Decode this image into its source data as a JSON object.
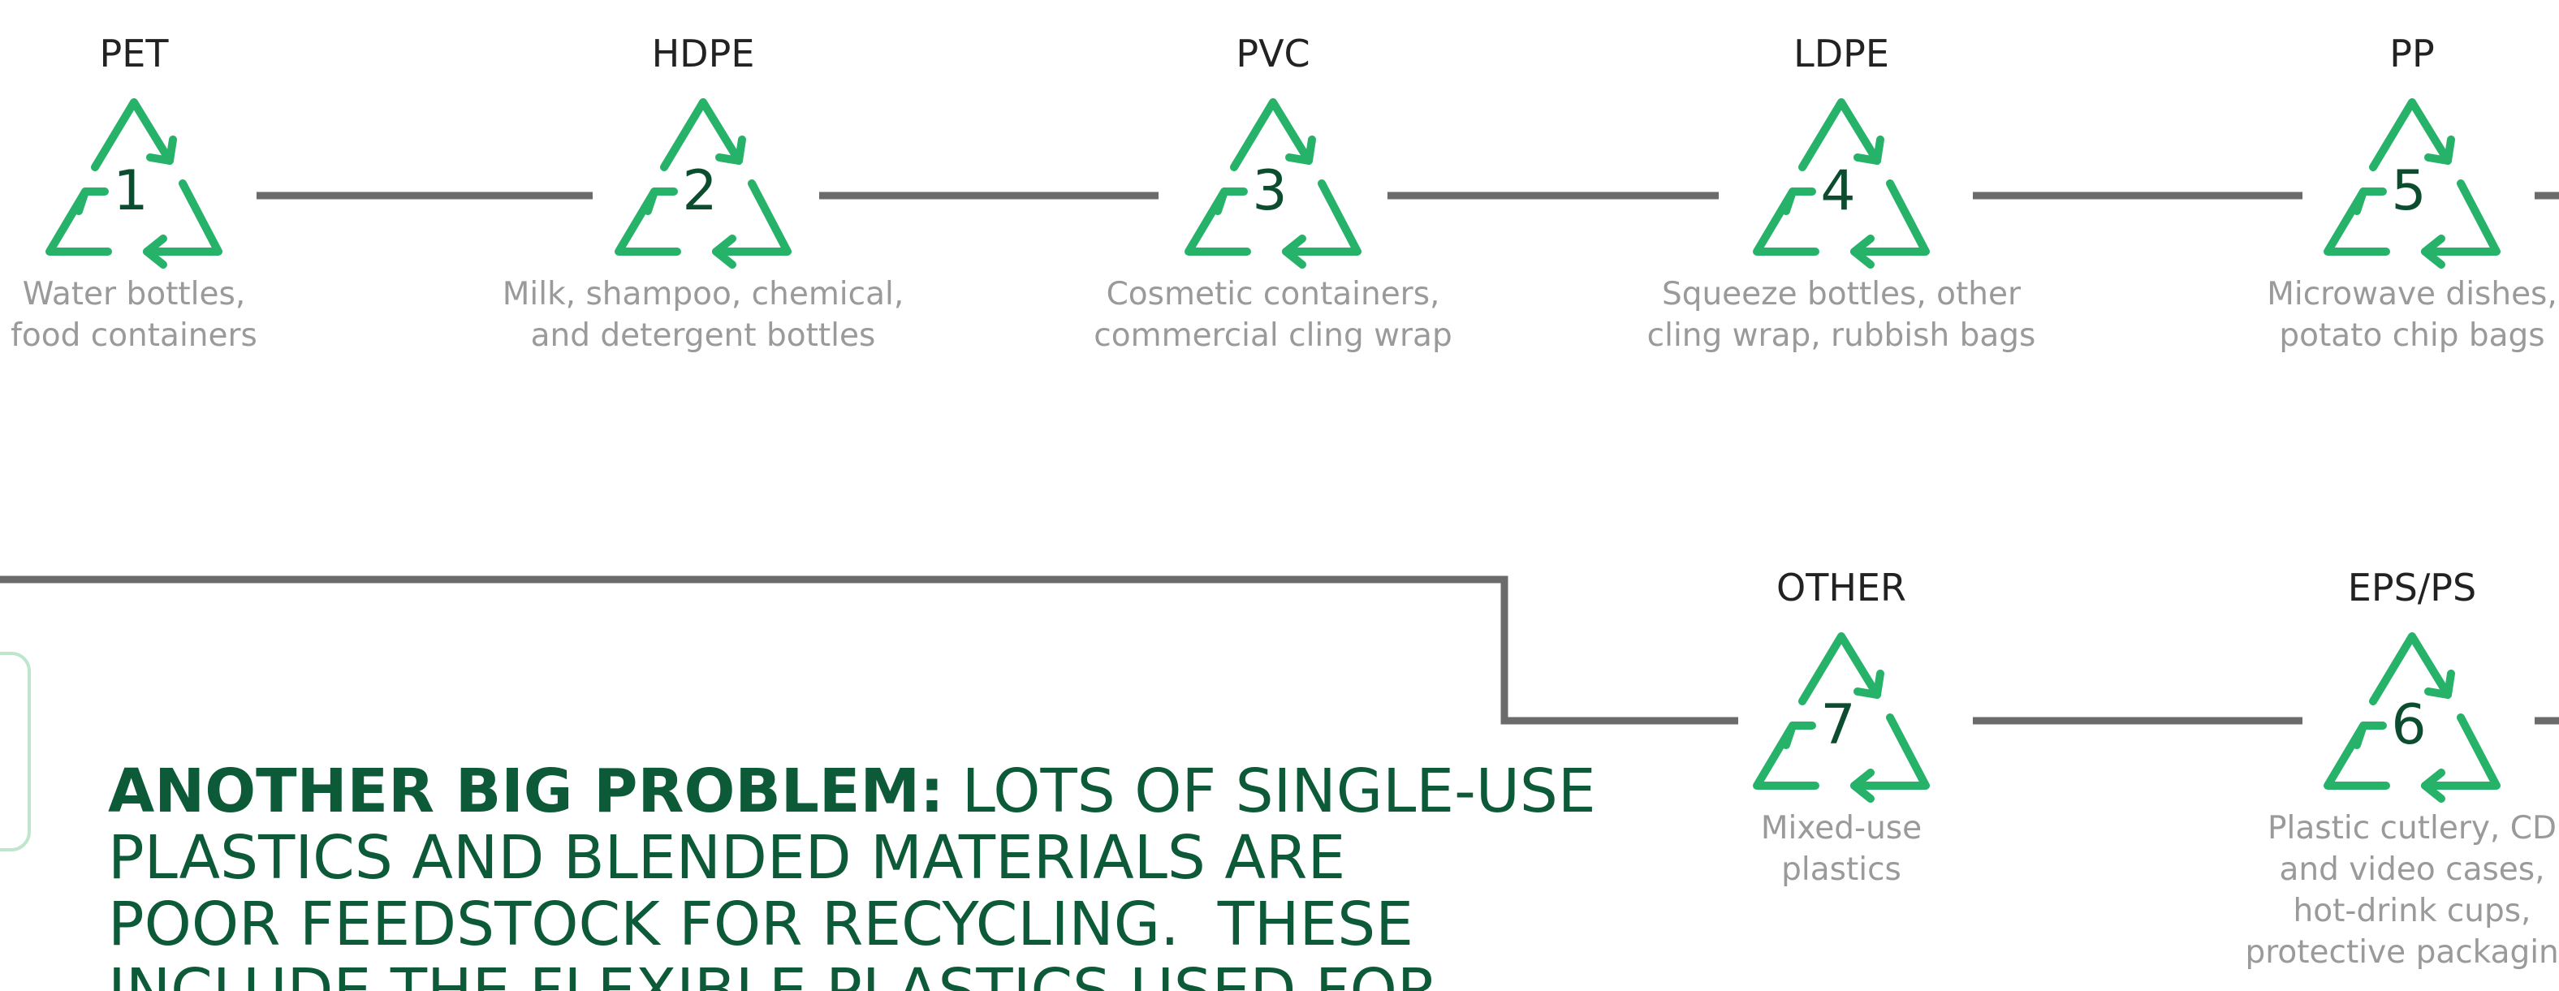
{
  "nodes": [
    {
      "label": "PET",
      "number": 1,
      "description": [
        "Water bottles,",
        "food containers"
      ]
    },
    {
      "label": "HDPE",
      "number": 2,
      "description": [
        "Milk, shampoo, chemical,",
        "and detergent bottles"
      ]
    },
    {
      "label": "PVC",
      "number": 3,
      "description": [
        "Cosmetic containers,",
        "commercial cling wrap"
      ]
    },
    {
      "label": "LDPE",
      "number": 4,
      "description": [
        "Squeeze bottles, other",
        "cling wrap, rubbish bags"
      ]
    },
    {
      "label": "PP",
      "number": 5,
      "description": [
        "Microwave dishes,",
        "potato chip bags"
      ]
    },
    {
      "label": "OTHER",
      "number": 7,
      "description": [
        "Mixed-use",
        "plastics"
      ]
    },
    {
      "label": "EPS/PS",
      "number": 6,
      "description": [
        "Plastic cutlery, CD",
        "and video cases,",
        "hot-drink cups,",
        "protective packaging"
      ]
    }
  ],
  "callout": {
    "lead": "ANOTHER BIG PROBLEM:",
    "lines": [
      "LOTS OF SINGLE-USE",
      "PLASTICS AND BLENDED MATERIALS ARE",
      "POOR FEEDSTOCK FOR RECYCLING.  THESE",
      "INCLUDE THE FLEXIBLE PLASTICS USED FOR"
    ]
  }
}
